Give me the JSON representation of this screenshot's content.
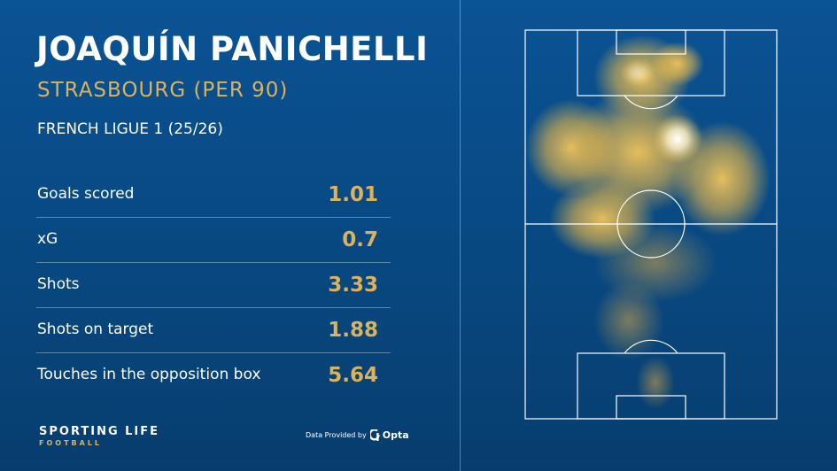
{
  "header": {
    "player_name": "JOAQUÍN PANICHELLI",
    "club_line": "STRASBOURG (PER 90)",
    "competition": "FRENCH LIGUE 1 (25/26)"
  },
  "stats": [
    {
      "label": "Goals scored",
      "value": "1.01"
    },
    {
      "label": "xG",
      "value": "0.7"
    },
    {
      "label": "Shots",
      "value": "3.33"
    },
    {
      "label": "Shots on target",
      "value": "1.88"
    },
    {
      "label": "Touches in the opposition box",
      "value": "5.64"
    }
  ],
  "footer": {
    "brand_name": "SPORTING LIFE",
    "brand_sub": "FOOTBALL",
    "provider_text": "Data Provided by",
    "provider_name": "Opta"
  },
  "heatmap": {
    "graphic": "touch-heatmap",
    "color_low": "#0a5394",
    "color_mid": "#e8b84a",
    "color_high": "#ffffff"
  },
  "colors": {
    "background": "#0a5394",
    "accent": "#dcb35d",
    "text": "#ffffff"
  }
}
